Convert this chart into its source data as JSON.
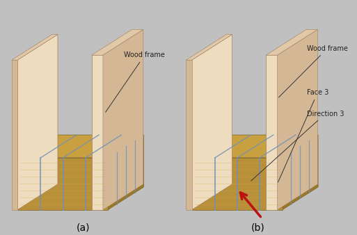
{
  "figure_width": 5.13,
  "figure_height": 3.38,
  "dpi": 100,
  "bg_color": "#c0c0c0",
  "panel_bg": "#c0c0c0",
  "label_a": "(a)",
  "label_b": "(b)",
  "label_fontsize": 10,
  "annotation_wood_frame": "Wood frame",
  "annotation_face3": "Face 3",
  "annotation_direction3": "Direction 3",
  "annotation_fontsize": 7.0,
  "wood_face": "#eedcbf",
  "wood_side": "#d4b896",
  "wood_top": "#e0c8a8",
  "wood_edge_color": "#a08060",
  "straw_front": "#b8903a",
  "straw_side": "#9a7828",
  "straw_top": "#c8a040",
  "straw_edge": "#7a6020",
  "straw_line_color": "#7090b8",
  "arrow_color": "#bb1111"
}
